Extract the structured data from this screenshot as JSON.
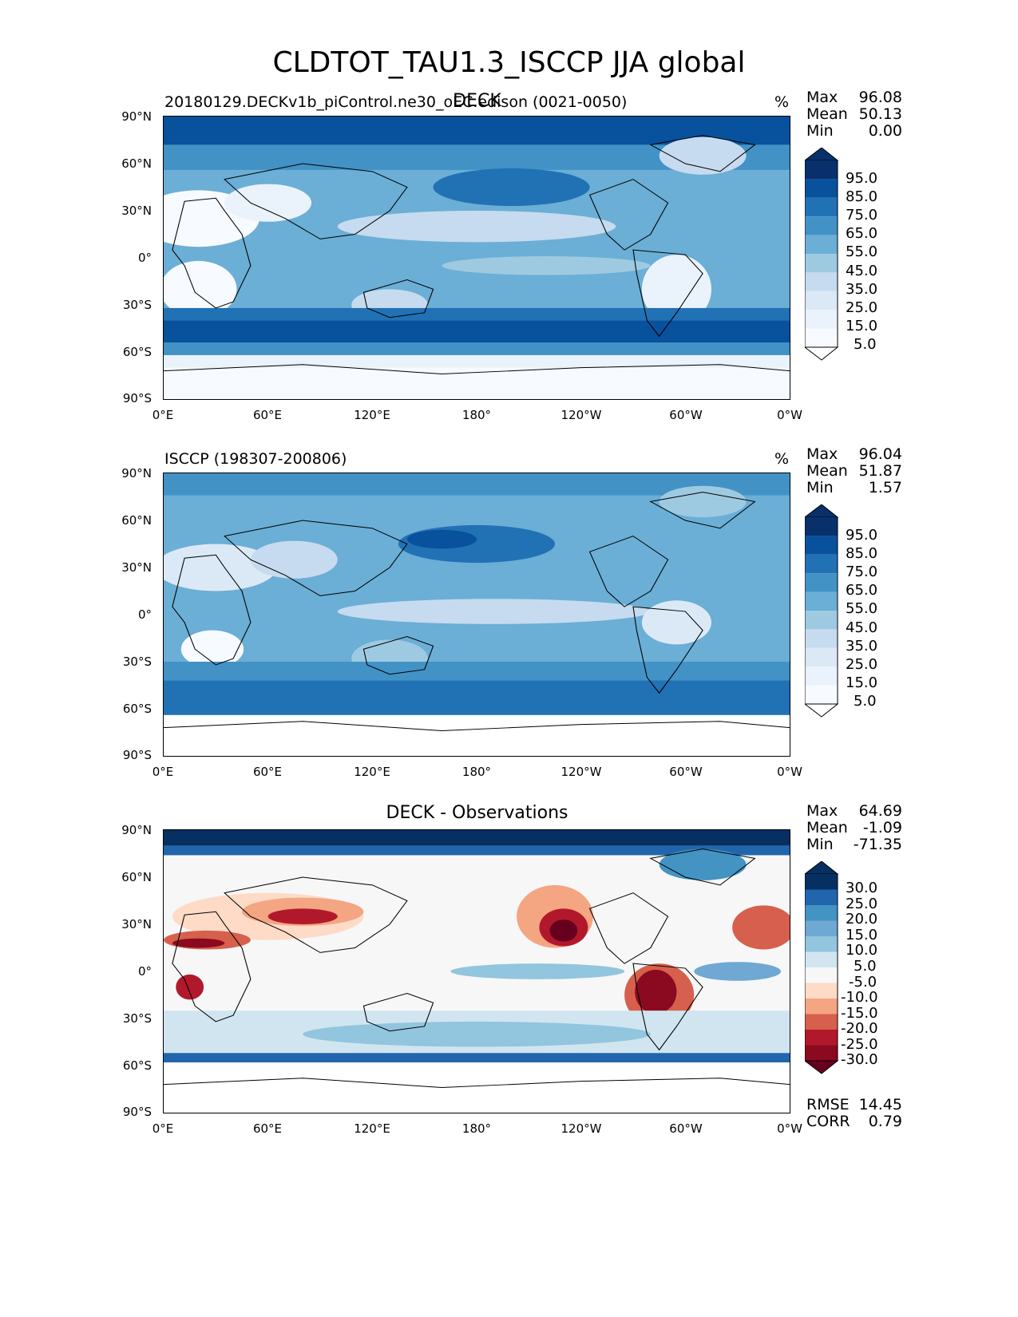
{
  "figure": {
    "title": "CLDTOT_TAU1.3_ISCCP JJA global"
  },
  "axes": {
    "lat_ticks": [
      "90°N",
      "60°N",
      "30°N",
      "0°",
      "30°S",
      "60°S",
      "90°S"
    ],
    "lon_ticks": [
      "0°E",
      "60°E",
      "120°E",
      "180°",
      "120°W",
      "60°W",
      "0°W"
    ]
  },
  "panels": [
    {
      "id": "test",
      "title": "DECK",
      "run_label": "20180129.DECKv1b_piControl.ne30_oEC.edison (0021-0050)",
      "units": "%",
      "stats": [
        {
          "name": "Max",
          "value": "96.08"
        },
        {
          "name": "Mean",
          "value": "50.13"
        },
        {
          "name": "Min",
          "value": "0.00"
        }
      ],
      "colorbar_labels": [
        "95.0",
        "85.0",
        "75.0",
        "65.0",
        "55.0",
        "45.0",
        "35.0",
        "25.0",
        "15.0",
        "5.0"
      ],
      "colorbar_colors": [
        "#08306b",
        "#08519c",
        "#2171b5",
        "#4292c6",
        "#6baed6",
        "#9ecae1",
        "#c6dbef",
        "#dbe9f6",
        "#eaf2fb",
        "#f7fbff"
      ]
    },
    {
      "id": "reference",
      "title": "",
      "run_label": "ISCCP (198307-200806)",
      "units": "%",
      "stats": [
        {
          "name": "Max",
          "value": "96.04"
        },
        {
          "name": "Mean",
          "value": "51.87"
        },
        {
          "name": "Min",
          "value": "1.57"
        }
      ],
      "colorbar_labels": [
        "95.0",
        "85.0",
        "75.0",
        "65.0",
        "55.0",
        "45.0",
        "35.0",
        "25.0",
        "15.0",
        "5.0"
      ],
      "colorbar_colors": [
        "#08306b",
        "#08519c",
        "#2171b5",
        "#4292c6",
        "#6baed6",
        "#9ecae1",
        "#c6dbef",
        "#dbe9f6",
        "#eaf2fb",
        "#f7fbff"
      ]
    },
    {
      "id": "diff",
      "title": "DECK - Observations",
      "run_label": "",
      "units": "",
      "stats": [
        {
          "name": "Max",
          "value": "64.69"
        },
        {
          "name": "Mean",
          "value": "-1.09"
        },
        {
          "name": "Min",
          "value": "-71.35"
        }
      ],
      "colorbar_labels": [
        "30.0",
        "25.0",
        "20.0",
        "15.0",
        "10.0",
        "5.0",
        "-5.0",
        "-10.0",
        "-15.0",
        "-20.0",
        "-25.0",
        "-30.0"
      ],
      "colorbar_colors": [
        "#053061",
        "#2166ac",
        "#4393c3",
        "#6fa8d3",
        "#92c5de",
        "#d1e5f0",
        "#f7f7f7",
        "#fddbc7",
        "#f4a582",
        "#d6604d",
        "#b2182b",
        "#8b0a1f",
        "#67001f"
      ],
      "metrics": [
        {
          "name": "RMSE",
          "value": "14.45"
        },
        {
          "name": "CORR",
          "value": "0.79"
        }
      ]
    }
  ]
}
